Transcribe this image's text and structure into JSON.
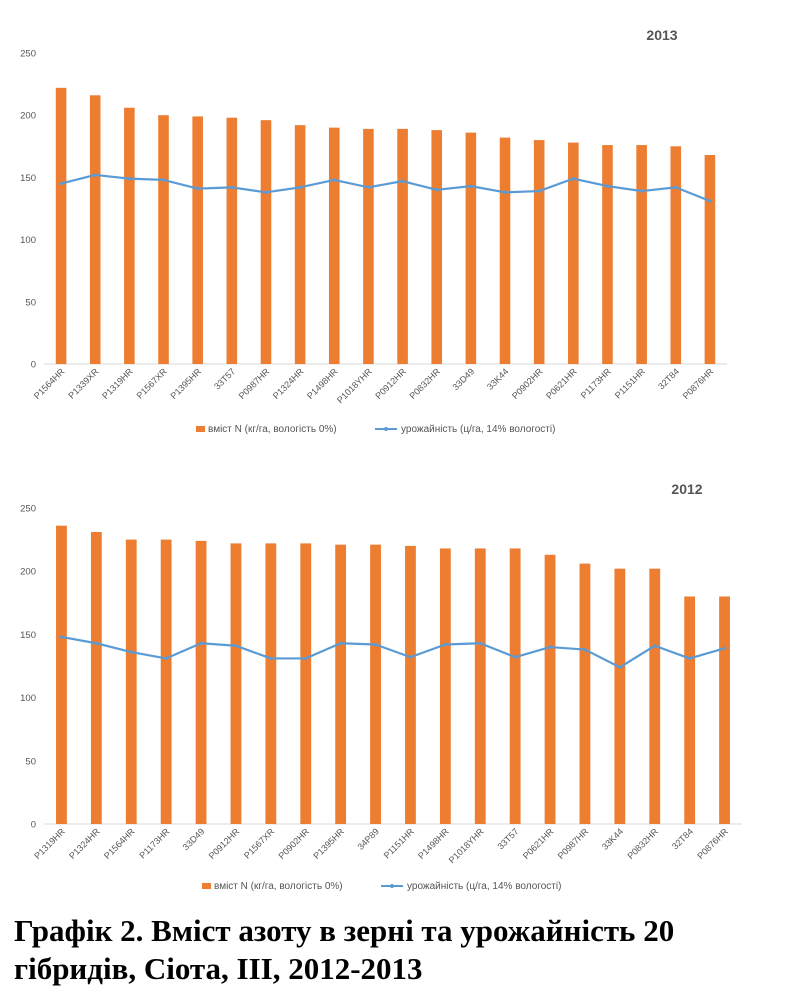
{
  "colors": {
    "bar": "#ED7D31",
    "line": "#5B9BD5",
    "grid": "#D9D9D9",
    "text": "#595959"
  },
  "chart_data": [
    {
      "type": "bar",
      "title": "2013",
      "ylim": [
        0,
        250
      ],
      "yticks": [
        0,
        50,
        100,
        150,
        200,
        250
      ],
      "grid": false,
      "legend_position": "bottom",
      "categories": [
        "P1564HR",
        "P1339XR",
        "P1319HR",
        "P1567XR",
        "P1395HR",
        "33T57",
        "P0987HR",
        "P1324HR",
        "P1498HR",
        "P1018YHR",
        "P0912HR",
        "P0832HR",
        "33D49",
        "33K44",
        "P0902HR",
        "P0621HR",
        "P1173HR",
        "P1151HR",
        "32T84",
        "P0876HR"
      ],
      "series": [
        {
          "name": "вміст N (кг/га, вологість 0%)",
          "type": "bar",
          "values": [
            222,
            216,
            206,
            200,
            199,
            198,
            196,
            192,
            190,
            189,
            189,
            188,
            186,
            182,
            180,
            178,
            176,
            176,
            175,
            168
          ]
        },
        {
          "name": "урожайність (ц/га, 14% вологості)",
          "type": "line",
          "values": [
            145,
            152,
            149,
            148,
            141,
            142,
            138,
            142,
            148,
            142,
            147,
            140,
            143,
            138,
            139,
            149,
            143,
            139,
            142,
            131
          ]
        }
      ]
    },
    {
      "type": "bar",
      "title": "2012",
      "ylim": [
        0,
        250
      ],
      "yticks": [
        0,
        50,
        100,
        150,
        200,
        250
      ],
      "grid": false,
      "legend_position": "bottom",
      "categories": [
        "P1319HR",
        "P1324HR",
        "P1564HR",
        "P1173HR",
        "33D49",
        "P0912HR",
        "P1567XR",
        "P0902HR",
        "P1395HR",
        "34P89",
        "P1151HR",
        "P1498HR",
        "P1018YHR",
        "33T57",
        "P0621HR",
        "P0987HR",
        "33K44",
        "P0832HR",
        "32T84",
        "P0876HR"
      ],
      "series": [
        {
          "name": "вміст N (кг/га, вологість 0%)",
          "type": "bar",
          "values": [
            236,
            231,
            225,
            225,
            224,
            222,
            222,
            222,
            221,
            221,
            220,
            218,
            218,
            218,
            213,
            206,
            202,
            202,
            180,
            180
          ]
        },
        {
          "name": "урожайність (ц/га, 14% вологості)",
          "type": "line",
          "values": [
            148,
            143,
            136,
            131,
            143,
            141,
            131,
            131,
            143,
            142,
            132,
            142,
            143,
            132,
            140,
            138,
            124,
            141,
            131,
            139
          ]
        }
      ]
    }
  ],
  "caption": "Графік 2. Вміст азоту в зерні та урожайність 20 гібридів, Сіота, ІІІ, 2012-2013"
}
